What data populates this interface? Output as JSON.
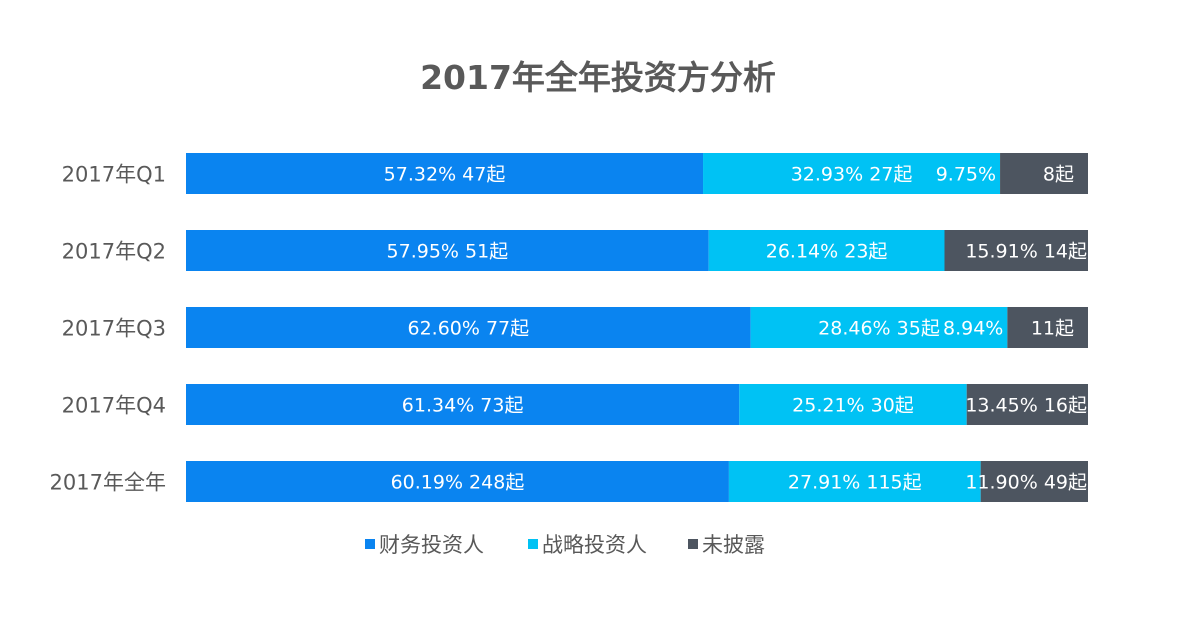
{
  "chart_data": {
    "type": "bar",
    "orientation": "horizontal",
    "stacked": true,
    "percent_stacked": true,
    "title": "2017年全年投资方分析",
    "categories": [
      "2017年Q1",
      "2017年Q2",
      "2017年Q3",
      "2017年Q4",
      "2017年全年"
    ],
    "series": [
      {
        "name": "财务投资人",
        "color": "#0a84f0",
        "values": [
          57.32,
          57.95,
          62.6,
          61.34,
          60.19
        ],
        "labels": [
          "57.32% 47起",
          "57.95% 51起",
          "62.60% 77起",
          "61.34% 73起",
          "60.19% 248起"
        ]
      },
      {
        "name": "战略投资人",
        "color": "#00c2f4",
        "values": [
          32.93,
          26.14,
          28.46,
          25.21,
          27.91
        ],
        "labels": [
          "32.93% 27起",
          "26.14% 23起",
          "28.46% 35起",
          "25.21% 30起",
          "27.91% 115起"
        ]
      },
      {
        "name": "未披露",
        "color": "#4d5560",
        "values": [
          9.75,
          15.91,
          8.94,
          13.45,
          11.9
        ],
        "labels": [
          "9.75%",
          "15.91% 14起",
          "8.94%",
          "13.45% 16起",
          "11.90% 49起"
        ],
        "count_labels": [
          "8起",
          "",
          "11起",
          "",
          ""
        ]
      }
    ],
    "xlim": [
      0,
      100
    ],
    "grid": false,
    "legend_position": "bottom-center",
    "colors": {
      "text": "#595959",
      "title": "#595959",
      "label_on_bar": "#ffffff"
    }
  }
}
